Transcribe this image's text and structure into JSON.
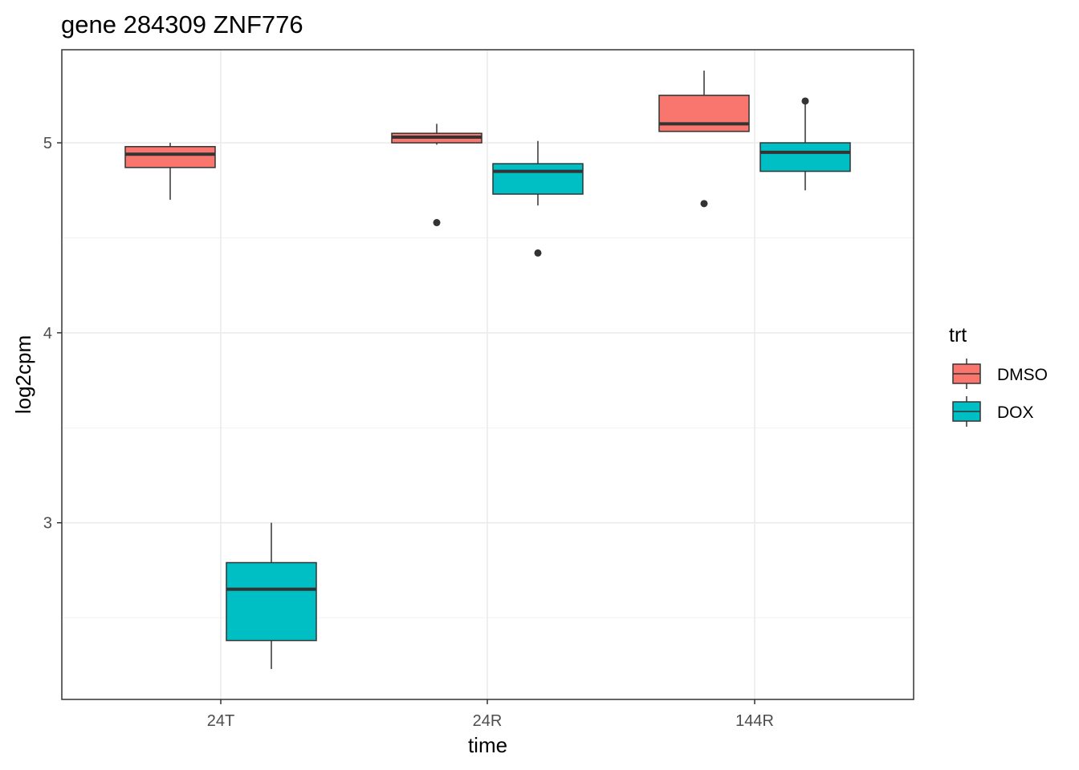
{
  "chart_data": {
    "type": "boxplot",
    "title": "gene 284309 ZNF776",
    "xlabel": "time",
    "ylabel": "log2cpm",
    "categories": [
      "24T",
      "24R",
      "144R"
    ],
    "ylim": [
      2.07,
      5.49
    ],
    "yticks": [
      3,
      4,
      5
    ],
    "grid": true,
    "legend": {
      "title": "trt",
      "position": "right",
      "entries": [
        {
          "name": "DMSO",
          "color": "#F8766D"
        },
        {
          "name": "DOX",
          "color": "#00BFC4"
        }
      ]
    },
    "series": [
      {
        "name": "DMSO",
        "color": "#F8766D",
        "boxes": [
          {
            "category": "24T",
            "whisker_low": 4.7,
            "q1": 4.87,
            "median": 4.94,
            "q3": 4.98,
            "whisker_high": 5.0,
            "outliers": []
          },
          {
            "category": "24R",
            "whisker_low": 4.99,
            "q1": 5.0,
            "median": 5.03,
            "q3": 5.05,
            "whisker_high": 5.1,
            "outliers": [
              4.58
            ]
          },
          {
            "category": "144R",
            "whisker_low": 5.06,
            "q1": 5.06,
            "median": 5.1,
            "q3": 5.25,
            "whisker_high": 5.38,
            "outliers": [
              4.68
            ]
          }
        ]
      },
      {
        "name": "DOX",
        "color": "#00BFC4",
        "boxes": [
          {
            "category": "24T",
            "whisker_low": 2.23,
            "q1": 2.38,
            "median": 2.65,
            "q3": 2.79,
            "whisker_high": 3.0,
            "outliers": []
          },
          {
            "category": "24R",
            "whisker_low": 4.67,
            "q1": 4.73,
            "median": 4.85,
            "q3": 4.89,
            "whisker_high": 5.01,
            "outliers": [
              4.42
            ]
          },
          {
            "category": "144R",
            "whisker_low": 4.75,
            "q1": 4.85,
            "median": 4.95,
            "q3": 5.0,
            "whisker_high": 5.22,
            "outliers": [
              5.22
            ]
          }
        ]
      }
    ]
  }
}
